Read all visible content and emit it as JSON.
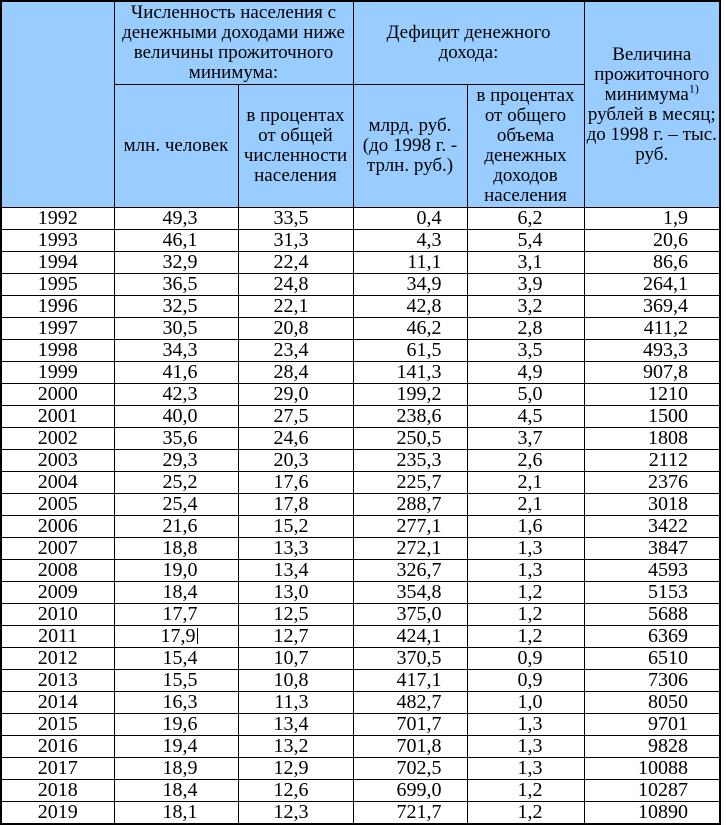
{
  "colors": {
    "header_bg": "#99CCFF",
    "border": "#000000",
    "text": "#000000"
  },
  "table": {
    "header": {
      "year_column": "",
      "population_below_minimum_group": "Численность населения с денежными доходами ниже величины прожиточного минимума:",
      "income_deficit_group": "Дефицит денежного дохода:",
      "millions_of_people": "млн. человек",
      "percent_of_population": "в процентах от общей численности населения",
      "billion_rubles": "млрд. руб. (до 1998 г. - трлн. руб.)",
      "percent_of_income": "в процентах от общего объема денежных доходов населения",
      "subsistence_minimum": "Величина прожиточного минимума",
      "subsistence_minimum_footnote": "1)",
      "subsistence_minimum_units": " рублей в месяц; до 1998 г. – тыс. руб."
    },
    "rows": [
      [
        "1992",
        "49,3",
        "33,5",
        "0,4",
        "6,2",
        "1,9"
      ],
      [
        "1993",
        "46,1",
        "31,3",
        "4,3",
        "5,4",
        "20,6"
      ],
      [
        "1994",
        "32,9",
        "22,4",
        "11,1",
        "3,1",
        "86,6"
      ],
      [
        "1995",
        "36,5",
        "24,8",
        "34,9",
        "3,9",
        "264,1"
      ],
      [
        "1996",
        "32,5",
        "22,1",
        "42,8",
        "3,2",
        "369,4"
      ],
      [
        "1997",
        "30,5",
        "20,8",
        "46,2",
        "2,8",
        "411,2"
      ],
      [
        "1998",
        "34,3",
        "23,4",
        "61,5",
        "3,5",
        "493,3"
      ],
      [
        "1999",
        "41,6",
        "28,4",
        "141,3",
        "4,9",
        "907,8"
      ],
      [
        "2000",
        "42,3",
        "29,0",
        "199,2",
        "5,0",
        "1210"
      ],
      [
        "2001",
        "40,0",
        "27,5",
        "238,6",
        "4,5",
        "1500"
      ],
      [
        "2002",
        "35,6",
        "24,6",
        "250,5",
        "3,7",
        "1808"
      ],
      [
        "2003",
        "29,3",
        "20,3",
        "235,3",
        "2,6",
        "2112"
      ],
      [
        "2004",
        "25,2",
        "17,6",
        "225,7",
        "2,1",
        "2376"
      ],
      [
        "2005",
        "25,4",
        "17,8",
        "288,7",
        "2,1",
        "3018"
      ],
      [
        "2006",
        "21,6",
        "15,2",
        "277,1",
        "1,6",
        "3422"
      ],
      [
        "2007",
        "18,8",
        "13,3",
        "272,1",
        "1,3",
        "3847"
      ],
      [
        "2008",
        "19,0",
        "13,4",
        "326,7",
        "1,3",
        "4593"
      ],
      [
        "2009",
        "18,4",
        "13,0",
        "354,8",
        "1,2",
        "5153"
      ],
      [
        "2010",
        "17,7",
        "12,5",
        "375,0",
        "1,2",
        "5688"
      ],
      [
        "2011",
        "17,9",
        "12,7",
        "424,1",
        "1,2",
        "6369"
      ],
      [
        "2012",
        "15,4",
        "10,7",
        "370,5",
        "0,9",
        "6510"
      ],
      [
        "2013",
        "15,5",
        "10,8",
        "417,1",
        "0,9",
        "7306"
      ],
      [
        "2014",
        "16,3",
        "11,3",
        "482,7",
        "1,0",
        "8050"
      ],
      [
        "2015",
        "19,6",
        "13,4",
        "701,7",
        "1,3",
        "9701"
      ],
      [
        "2016",
        "19,4",
        "13,2",
        "701,8",
        "1,3",
        "9828"
      ],
      [
        "2017",
        "18,9",
        "12,9",
        "702,5",
        "1,3",
        "10088"
      ],
      [
        "2018",
        "18,4",
        "12,6",
        "699,0",
        "1,2",
        "10287"
      ],
      [
        "2019",
        "18,1",
        "12,3",
        "721,7",
        "1,2",
        "10890"
      ]
    ],
    "cursor": {
      "row_index": 19,
      "cell_index": 1
    }
  }
}
